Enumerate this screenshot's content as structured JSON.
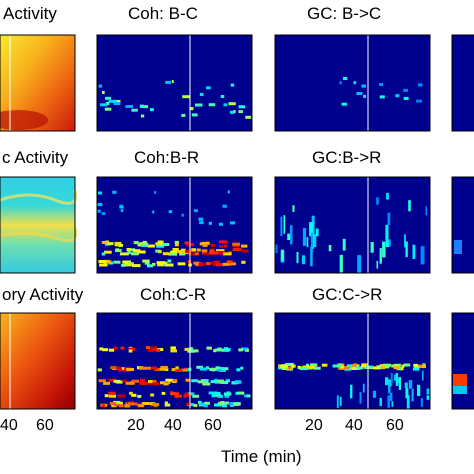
{
  "chart_data": {
    "type": "heatmap",
    "xlabel": "Time (min)",
    "xticks_left": [
      "40",
      "60"
    ],
    "xticks_panels": [
      "20",
      "40",
      "60"
    ],
    "xlim": [
      0,
      75
    ],
    "event_time": 45,
    "colormap": "jet",
    "row_titles": [
      "Activity",
      "c Activity",
      "ory Activity"
    ],
    "panels": [
      {
        "title": "Coh: B-C",
        "row": 0,
        "col": 1,
        "pattern": "sparse_low_bands"
      },
      {
        "title": "GC: B->C",
        "row": 0,
        "col": 2,
        "pattern": "very_sparse"
      },
      {
        "title": "Coh:B-R",
        "row": 1,
        "col": 1,
        "pattern": "bands_rising_after_event"
      },
      {
        "title": "GC:B->R",
        "row": 1,
        "col": 2,
        "pattern": "sparse_streaks"
      },
      {
        "title": "Coh:C-R",
        "row": 2,
        "col": 1,
        "pattern": "strong_low_bands_early"
      },
      {
        "title": "GC:C->R",
        "row": 2,
        "col": 2,
        "pattern": "single_band"
      }
    ]
  }
}
